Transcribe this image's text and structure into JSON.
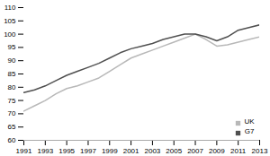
{
  "chart_data": {
    "type": "line",
    "x": [
      1991,
      1992,
      1993,
      1994,
      1995,
      1996,
      1997,
      1998,
      1999,
      2000,
      2001,
      2002,
      2003,
      2004,
      2005,
      2006,
      2007,
      2008,
      2009,
      2010,
      2011,
      2012,
      2013
    ],
    "series": [
      {
        "name": "UK",
        "color": "#b8b8b8",
        "values": [
          71.0,
          73.0,
          75.0,
          77.5,
          79.5,
          80.5,
          82.0,
          83.5,
          86.0,
          88.5,
          91.0,
          92.5,
          94.0,
          95.5,
          97.0,
          98.5,
          100.0,
          98.0,
          95.5,
          96.0,
          97.0,
          98.0,
          99.0
        ]
      },
      {
        "name": "G7",
        "color": "#505050",
        "values": [
          78.0,
          79.0,
          80.5,
          82.5,
          84.5,
          86.0,
          87.5,
          89.0,
          91.0,
          93.0,
          94.5,
          95.5,
          96.5,
          98.0,
          99.0,
          100.0,
          100.0,
          99.0,
          97.5,
          99.0,
          101.5,
          102.5,
          103.5
        ]
      }
    ],
    "xlim": [
      1991,
      2013
    ],
    "xticks": [
      1991,
      1993,
      1995,
      1997,
      1999,
      2001,
      2003,
      2005,
      2007,
      2009,
      2011,
      2013
    ],
    "ylim": [
      60,
      110
    ],
    "yticks": [
      60,
      65,
      70,
      75,
      80,
      85,
      90,
      95,
      100,
      105,
      110
    ],
    "grid": false,
    "legend": "lower right"
  }
}
